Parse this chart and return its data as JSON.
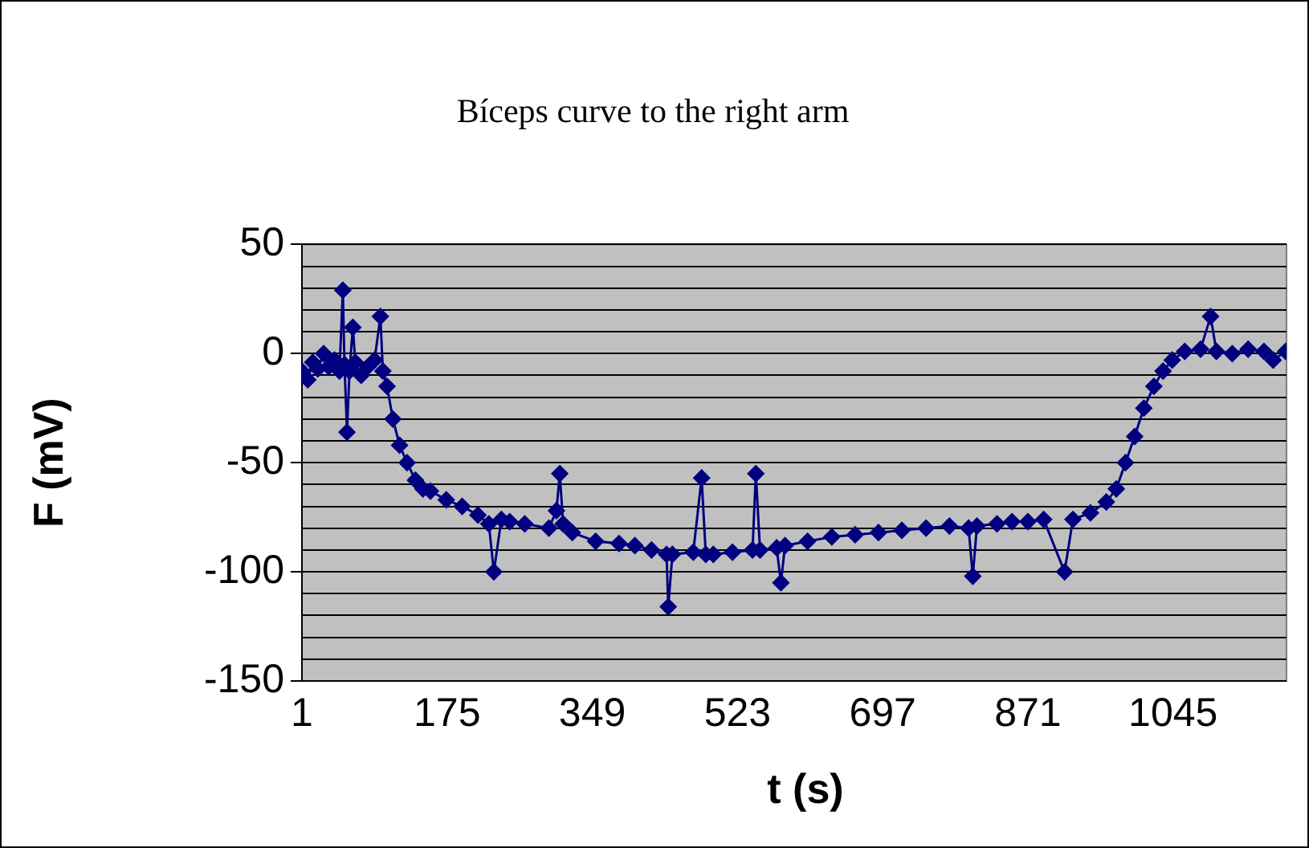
{
  "chart_data": {
    "type": "line",
    "title": "Bíceps curve to the right arm",
    "xlabel": "t (s)",
    "ylabel": "F (mV)",
    "xlim": [
      1,
      1181
    ],
    "xticks": [
      1,
      175,
      349,
      523,
      697,
      871,
      1045
    ],
    "ylim": [
      -150,
      50
    ],
    "yticks": [
      {
        "value": -150,
        "label": "-150"
      },
      {
        "value": -140,
        "label": null
      },
      {
        "value": -130,
        "label": null
      },
      {
        "value": -120,
        "label": null
      },
      {
        "value": -110,
        "label": null
      },
      {
        "value": -100,
        "label": "-100"
      },
      {
        "value": -90,
        "label": null
      },
      {
        "value": -80,
        "label": null
      },
      {
        "value": -70,
        "label": null
      },
      {
        "value": -60,
        "label": null
      },
      {
        "value": -50,
        "label": "-50"
      },
      {
        "value": -40,
        "label": null
      },
      {
        "value": -30,
        "label": null
      },
      {
        "value": -20,
        "label": null
      },
      {
        "value": -10,
        "label": null
      },
      {
        "value": 0,
        "label": "0"
      },
      {
        "value": 10,
        "label": null
      },
      {
        "value": 20,
        "label": null
      },
      {
        "value": 30,
        "label": null
      },
      {
        "value": 40,
        "label": null
      },
      {
        "value": 50,
        "label": "50"
      }
    ],
    "grid": "y",
    "legend": false,
    "marker": "diamond",
    "line_style": "solid",
    "x": [
      1,
      8,
      14,
      20,
      27,
      33,
      40,
      46,
      50,
      52,
      55,
      58,
      62,
      65,
      72,
      80,
      88,
      95,
      98,
      103,
      110,
      118,
      127,
      137,
      146,
      155,
      174,
      193,
      212,
      225,
      231,
      240,
      250,
      268,
      297,
      306,
      310,
      314,
      325,
      353,
      381,
      400,
      420,
      438,
      440,
      445,
      470,
      480,
      485,
      494,
      517,
      541,
      545,
      550,
      570,
      575,
      580,
      607,
      636,
      664,
      692,
      720,
      749,
      777,
      800,
      805,
      810,
      834,
      852,
      871,
      890,
      915,
      925,
      946,
      965,
      977,
      988,
      999,
      1010,
      1022,
      1033,
      1044,
      1059,
      1078,
      1090,
      1097,
      1116,
      1135,
      1154,
      1165,
      1180
    ],
    "series": [
      {
        "color": "#000080",
        "values": [
          -8,
          -12,
          -4,
          -7,
          0,
          -6,
          -3,
          -8,
          29,
          -5,
          -36,
          -8,
          12,
          -4,
          -10,
          -6,
          -3,
          17,
          -8,
          -15,
          -30,
          -42,
          -50,
          -58,
          -62,
          -63,
          -67,
          -70,
          -74,
          -78,
          -100,
          -76,
          -77,
          -78,
          -80,
          -72,
          -55,
          -78,
          -82,
          -86,
          -87,
          -88,
          -90,
          -92,
          -116,
          -92,
          -91,
          -57,
          -92,
          -92,
          -91,
          -90,
          -55,
          -90,
          -89,
          -105,
          -88,
          -86,
          -84,
          -83,
          -82,
          -81,
          -80,
          -79,
          -80,
          -102,
          -79,
          -78,
          -77,
          -77,
          -76,
          -100,
          -76,
          -73,
          -68,
          -62,
          -50,
          -38,
          -25,
          -15,
          -8,
          -3,
          1,
          2,
          17,
          1,
          0,
          2,
          1,
          -3,
          1
        ]
      }
    ]
  }
}
